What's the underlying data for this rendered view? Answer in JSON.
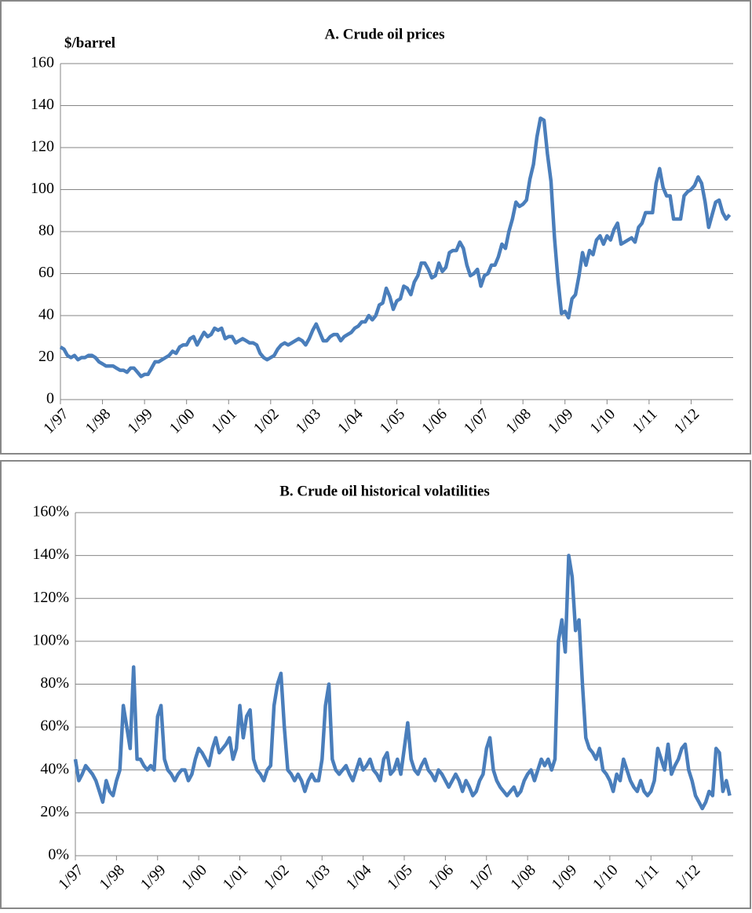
{
  "chart_data": [
    {
      "type": "line",
      "title": "A. Crude oil prices",
      "ylabel": "$/barrel",
      "color": "#4a7ebb",
      "grid": true,
      "ylim": [
        0,
        160
      ],
      "yticks": [
        0,
        20,
        40,
        60,
        80,
        100,
        120,
        140,
        160
      ],
      "categories": [
        "1/97",
        null,
        null,
        null,
        null,
        null,
        null,
        null,
        null,
        null,
        null,
        null,
        "1/98",
        null,
        null,
        null,
        null,
        null,
        null,
        null,
        null,
        null,
        null,
        null,
        "1/99",
        null,
        null,
        null,
        null,
        null,
        null,
        null,
        null,
        null,
        null,
        null,
        "1/00",
        null,
        null,
        null,
        null,
        null,
        null,
        null,
        null,
        null,
        null,
        null,
        "1/01",
        null,
        null,
        null,
        null,
        null,
        null,
        null,
        null,
        null,
        null,
        null,
        "1/02",
        null,
        null,
        null,
        null,
        null,
        null,
        null,
        null,
        null,
        null,
        null,
        "1/03",
        null,
        null,
        null,
        null,
        null,
        null,
        null,
        null,
        null,
        null,
        null,
        "1/04",
        null,
        null,
        null,
        null,
        null,
        null,
        null,
        null,
        null,
        null,
        null,
        "1/05",
        null,
        null,
        null,
        null,
        null,
        null,
        null,
        null,
        null,
        null,
        null,
        "1/06",
        null,
        null,
        null,
        null,
        null,
        null,
        null,
        null,
        null,
        null,
        null,
        "1/07",
        null,
        null,
        null,
        null,
        null,
        null,
        null,
        null,
        null,
        null,
        null,
        "1/08",
        null,
        null,
        null,
        null,
        null,
        null,
        null,
        null,
        null,
        null,
        null,
        "1/09",
        null,
        null,
        null,
        null,
        null,
        null,
        null,
        null,
        null,
        null,
        null,
        "1/10",
        null,
        null,
        null,
        null,
        null,
        null,
        null,
        null,
        null,
        null,
        null,
        "1/11",
        null,
        null,
        null,
        null,
        null,
        null,
        null,
        null,
        null,
        null,
        null,
        "1/12",
        null,
        null,
        null,
        null,
        null,
        null,
        null,
        null,
        null,
        null,
        null
      ],
      "values": [
        25,
        24,
        21,
        20,
        21,
        19,
        20,
        20,
        21,
        21,
        20,
        18,
        17,
        16,
        16,
        16,
        15,
        14,
        14,
        13,
        15,
        15,
        13,
        11,
        12,
        12,
        15,
        18,
        18,
        19,
        20,
        21,
        23,
        22,
        25,
        26,
        26,
        29,
        30,
        26,
        29,
        32,
        30,
        31,
        34,
        33,
        34,
        29,
        30,
        30,
        27,
        28,
        29,
        28,
        27,
        27,
        26,
        22,
        20,
        19,
        20,
        21,
        24,
        26,
        27,
        26,
        27,
        28,
        29,
        28,
        26,
        29,
        33,
        36,
        32,
        28,
        28,
        30,
        31,
        31,
        28,
        30,
        31,
        32,
        34,
        35,
        37,
        37,
        40,
        38,
        40,
        45,
        46,
        53,
        49,
        43,
        47,
        48,
        54,
        53,
        50,
        56,
        59,
        65,
        65,
        62,
        58,
        59,
        65,
        61,
        63,
        70,
        71,
        71,
        75,
        72,
        64,
        59,
        60,
        62,
        54,
        59,
        60,
        64,
        64,
        68,
        74,
        72,
        80,
        86,
        94,
        92,
        93,
        95,
        105,
        112,
        125,
        134,
        133,
        117,
        104,
        77,
        57,
        41,
        42,
        39,
        48,
        50,
        59,
        70,
        64,
        71,
        69,
        76,
        78,
        74,
        78,
        76,
        81,
        84,
        74,
        75,
        76,
        77,
        75,
        82,
        84,
        89,
        89,
        89,
        103,
        110,
        101,
        97,
        97,
        86,
        86,
        86,
        97,
        99,
        100,
        102,
        106,
        103,
        94,
        82,
        88,
        94,
        95,
        89,
        86,
        88
      ]
    },
    {
      "type": "line",
      "title": "B. Crude oil historical volatilities",
      "color": "#4a7ebb",
      "grid": true,
      "ylim": [
        0,
        160
      ],
      "yticks": [
        {
          "value": 0,
          "label": "0%"
        },
        {
          "value": 20,
          "label": "20%"
        },
        {
          "value": 40,
          "label": "40%"
        },
        {
          "value": 60,
          "label": "60%"
        },
        {
          "value": 80,
          "label": "80%"
        },
        {
          "value": 100,
          "label": "100%"
        },
        {
          "value": 120,
          "label": "120%"
        },
        {
          "value": 140,
          "label": "140%"
        },
        {
          "value": 160,
          "label": "160%"
        }
      ],
      "categories": [
        "1/97",
        null,
        null,
        null,
        null,
        null,
        null,
        null,
        null,
        null,
        null,
        null,
        "1/98",
        null,
        null,
        null,
        null,
        null,
        null,
        null,
        null,
        null,
        null,
        null,
        "1/99",
        null,
        null,
        null,
        null,
        null,
        null,
        null,
        null,
        null,
        null,
        null,
        "1/00",
        null,
        null,
        null,
        null,
        null,
        null,
        null,
        null,
        null,
        null,
        null,
        "1/01",
        null,
        null,
        null,
        null,
        null,
        null,
        null,
        null,
        null,
        null,
        null,
        "1/02",
        null,
        null,
        null,
        null,
        null,
        null,
        null,
        null,
        null,
        null,
        null,
        "1/03",
        null,
        null,
        null,
        null,
        null,
        null,
        null,
        null,
        null,
        null,
        null,
        "1/04",
        null,
        null,
        null,
        null,
        null,
        null,
        null,
        null,
        null,
        null,
        null,
        "1/05",
        null,
        null,
        null,
        null,
        null,
        null,
        null,
        null,
        null,
        null,
        null,
        "1/06",
        null,
        null,
        null,
        null,
        null,
        null,
        null,
        null,
        null,
        null,
        null,
        "1/07",
        null,
        null,
        null,
        null,
        null,
        null,
        null,
        null,
        null,
        null,
        null,
        "1/08",
        null,
        null,
        null,
        null,
        null,
        null,
        null,
        null,
        null,
        null,
        null,
        "1/09",
        null,
        null,
        null,
        null,
        null,
        null,
        null,
        null,
        null,
        null,
        null,
        "1/10",
        null,
        null,
        null,
        null,
        null,
        null,
        null,
        null,
        null,
        null,
        null,
        "1/11",
        null,
        null,
        null,
        null,
        null,
        null,
        null,
        null,
        null,
        null,
        null,
        "1/12",
        null,
        null,
        null,
        null,
        null,
        null,
        null,
        null,
        null,
        null,
        null
      ],
      "values": [
        45,
        35,
        38,
        42,
        40,
        38,
        35,
        30,
        25,
        35,
        30,
        28,
        35,
        40,
        70,
        60,
        50,
        88,
        45,
        45,
        42,
        40,
        42,
        40,
        65,
        70,
        45,
        40,
        38,
        35,
        38,
        40,
        40,
        35,
        38,
        45,
        50,
        48,
        45,
        42,
        50,
        55,
        48,
        50,
        52,
        55,
        45,
        50,
        70,
        55,
        65,
        68,
        45,
        40,
        38,
        35,
        40,
        42,
        70,
        80,
        85,
        60,
        40,
        38,
        35,
        38,
        35,
        30,
        35,
        38,
        35,
        35,
        45,
        70,
        80,
        45,
        40,
        38,
        40,
        42,
        38,
        35,
        40,
        45,
        40,
        42,
        45,
        40,
        38,
        35,
        45,
        48,
        38,
        40,
        45,
        38,
        50,
        62,
        45,
        40,
        38,
        42,
        45,
        40,
        38,
        35,
        40,
        38,
        35,
        32,
        35,
        38,
        35,
        30,
        35,
        32,
        28,
        30,
        35,
        38,
        50,
        55,
        40,
        35,
        32,
        30,
        28,
        30,
        32,
        28,
        30,
        35,
        38,
        40,
        35,
        40,
        45,
        42,
        45,
        40,
        45,
        100,
        110,
        95,
        140,
        130,
        105,
        110,
        80,
        55,
        50,
        48,
        45,
        50,
        40,
        38,
        35,
        30,
        38,
        35,
        45,
        40,
        35,
        32,
        30,
        35,
        30,
        28,
        30,
        35,
        50,
        45,
        40,
        52,
        38,
        42,
        45,
        50,
        52,
        40,
        35,
        28,
        25,
        22,
        25,
        30,
        28,
        50,
        48,
        30,
        35,
        28
      ]
    }
  ]
}
